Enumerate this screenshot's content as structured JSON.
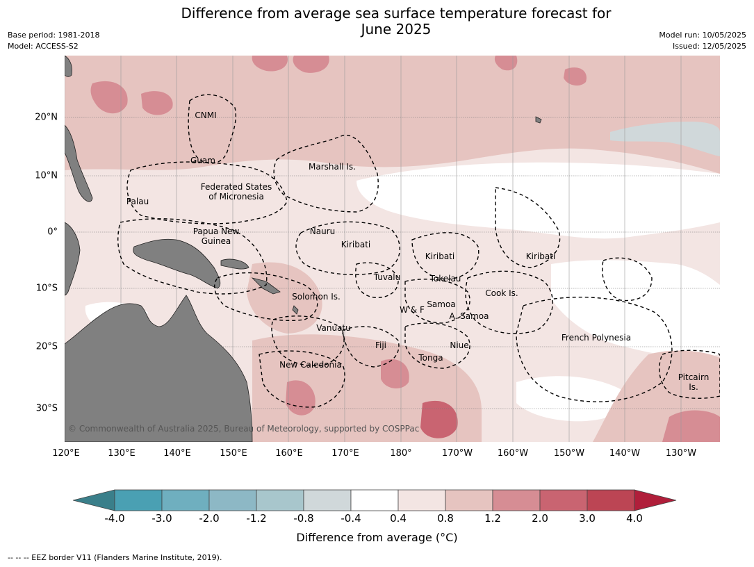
{
  "header": {
    "title_line1": "Difference from average sea surface temperature forecast for",
    "title_line2": "June 2025",
    "base_period": "Base period: 1981-2018",
    "model": "Model: ACCESS-S2",
    "model_run": "Model run: 10/05/2025",
    "issued": "Issued: 12/05/2025"
  },
  "map": {
    "latitude_labels": [
      "20°N",
      "10°N",
      "0°",
      "10°S",
      "20°S",
      "30°S"
    ],
    "longitude_labels": [
      "120°E",
      "130°E",
      "140°E",
      "150°E",
      "160°E",
      "170°E",
      "180°",
      "170°W",
      "160°W",
      "150°W",
      "140°W",
      "130°W"
    ],
    "eez_labels": [
      "CNMI",
      "Guam",
      "Marshall Is.",
      "Federated States",
      "of Micronesia",
      "Palau",
      "Papua New",
      "Guinea",
      "Nauru",
      "Kiribati",
      "Kiribati",
      "Kiribati",
      "Tuvalu",
      "Tokelau",
      "Solomon Is.",
      "W & F",
      "Samoa",
      "A. Samoa",
      "Cook Is.",
      "Vanuatu",
      "Fiji",
      "Niue",
      "Tonga",
      "New Caledonia",
      "French Polynesia",
      "Pitcairn",
      "Is."
    ],
    "copyright": "© Commonwealth of Australia 2025, Bureau of Meteorology, supported by COSPPac",
    "land_color": "#808080"
  },
  "colorbar": {
    "tick_labels": [
      "-4.0",
      "-3.0",
      "-2.0",
      "-1.2",
      "-0.8",
      "-0.4",
      "0.4",
      "0.8",
      "1.2",
      "2.0",
      "3.0",
      "4.0"
    ],
    "colors": [
      "#3a7f8a",
      "#4aa0b3",
      "#6fafbf",
      "#8db8c5",
      "#a8c6cc",
      "#d0d8da",
      "#ffffff",
      "#f3e5e3",
      "#e6c4c0",
      "#d68d94",
      "#c96471",
      "#bc4554",
      "#b01e3a"
    ],
    "label": "Difference from average (°C)"
  },
  "footer": {
    "eez_note": "-- -- -- EEZ border V11 (Flanders Marine Institute, 2019)."
  }
}
